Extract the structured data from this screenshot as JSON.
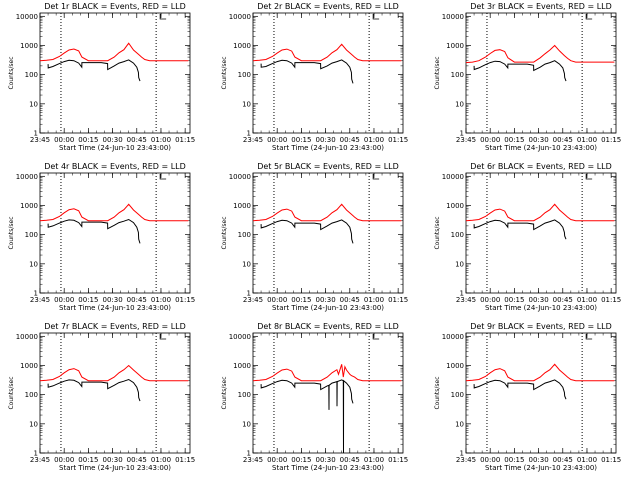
{
  "common": {
    "ylabel": "Counts/sec",
    "xlabel": "Start Time (24-Jun-10 23:43:00)",
    "x_tick_labels": [
      "23:45",
      "00:00",
      "00:15",
      "00:30",
      "00:45",
      "01:00",
      "01:15"
    ],
    "y_tick_labels": [
      "1",
      "10",
      "100",
      "1000",
      "10000"
    ],
    "y_log": true,
    "ylim": [
      1,
      13000
    ],
    "xlim_minutes_from_2345": [
      0,
      93
    ],
    "x_tick_minutes": [
      0,
      15,
      30,
      45,
      60,
      75,
      90
    ],
    "y_ticks": [
      1,
      10,
      100,
      1000,
      10000
    ],
    "vertical_dotted_lines_minutes": [
      13,
      72
    ],
    "colors": {
      "events": "#000000",
      "lld": "#ff0000"
    }
  },
  "chart_data": [
    {
      "type": "line",
      "title": "Det 1r BLACK = Events, RED = LLD",
      "series": [
        {
          "x": [
            0,
            4,
            8,
            12,
            15,
            18,
            21,
            24,
            26,
            30,
            34,
            38,
            42,
            46,
            49,
            52,
            55,
            58,
            61,
            63,
            65,
            68,
            72,
            76,
            80,
            84,
            88,
            92
          ],
          "values": [
            300,
            310,
            330,
            420,
            550,
            700,
            760,
            650,
            400,
            300,
            300,
            300,
            300,
            400,
            560,
            720,
            1200,
            700,
            500,
            400,
            330,
            300,
            300,
            300,
            300,
            300,
            300,
            300
          ]
        },
        {
          "x": [
            5,
            5.1,
            8,
            12,
            15,
            18,
            21,
            24,
            25.9,
            26,
            30,
            34,
            38,
            41.9,
            42,
            46,
            49,
            52,
            55,
            58,
            60,
            61,
            61.2,
            62
          ],
          "values": [
            230,
            170,
            190,
            240,
            280,
            310,
            300,
            250,
            180,
            260,
            260,
            260,
            260,
            240,
            150,
            200,
            250,
            280,
            320,
            250,
            180,
            120,
            80,
            60
          ]
        }
      ]
    },
    {
      "type": "line",
      "title": "Det 2r BLACK = Events, RED = LLD",
      "series": [
        {
          "x": [
            0,
            4,
            8,
            12,
            15,
            18,
            21,
            24,
            26,
            30,
            34,
            38,
            42,
            46,
            49,
            52,
            55,
            58,
            61,
            63,
            65,
            68,
            72,
            76,
            80,
            84,
            88,
            92
          ],
          "values": [
            300,
            310,
            330,
            420,
            550,
            700,
            750,
            640,
            400,
            300,
            300,
            300,
            300,
            400,
            560,
            720,
            1100,
            700,
            500,
            400,
            330,
            300,
            300,
            300,
            300,
            300,
            300,
            300
          ]
        },
        {
          "x": [
            5,
            5.1,
            8,
            12,
            15,
            18,
            21,
            24,
            25.9,
            26,
            30,
            34,
            38,
            41.9,
            42,
            46,
            49,
            52,
            55,
            58,
            60,
            61,
            61.2,
            62
          ],
          "values": [
            240,
            180,
            190,
            240,
            280,
            310,
            300,
            250,
            180,
            260,
            260,
            260,
            260,
            240,
            160,
            200,
            250,
            280,
            320,
            250,
            180,
            120,
            70,
            50
          ]
        }
      ]
    },
    {
      "type": "line",
      "title": "Det 3r BLACK = Events, RED = LLD",
      "series": [
        {
          "x": [
            0,
            4,
            8,
            12,
            15,
            18,
            21,
            24,
            26,
            30,
            34,
            38,
            42,
            46,
            49,
            52,
            55,
            58,
            61,
            63,
            65,
            68,
            72,
            76,
            80,
            84,
            88,
            92
          ],
          "values": [
            260,
            270,
            300,
            400,
            530,
            680,
            720,
            620,
            380,
            270,
            270,
            270,
            270,
            380,
            520,
            700,
            1000,
            650,
            450,
            360,
            300,
            270,
            270,
            270,
            270,
            270,
            270,
            270
          ]
        },
        {
          "x": [
            5,
            5.1,
            8,
            12,
            15,
            18,
            21,
            24,
            25.9,
            26,
            30,
            34,
            38,
            41.9,
            42,
            46,
            49,
            52,
            55,
            58,
            60,
            61,
            61.2,
            62
          ],
          "values": [
            200,
            150,
            170,
            220,
            260,
            290,
            280,
            230,
            170,
            230,
            230,
            230,
            230,
            210,
            140,
            180,
            230,
            260,
            300,
            230,
            170,
            110,
            80,
            60
          ]
        }
      ]
    },
    {
      "type": "line",
      "title": "Det 4r BLACK = Events, RED = LLD",
      "series": [
        {
          "x": [
            0,
            4,
            8,
            12,
            15,
            18,
            21,
            24,
            26,
            30,
            34,
            38,
            42,
            46,
            49,
            52,
            55,
            58,
            61,
            63,
            65,
            68,
            72,
            76,
            80,
            84,
            88,
            92
          ],
          "values": [
            300,
            310,
            330,
            420,
            560,
            720,
            770,
            660,
            400,
            300,
            300,
            300,
            300,
            400,
            560,
            720,
            1100,
            700,
            500,
            400,
            330,
            300,
            300,
            300,
            300,
            300,
            300,
            300
          ]
        },
        {
          "x": [
            5,
            5.1,
            8,
            12,
            15,
            18,
            21,
            24,
            25.9,
            26,
            30,
            34,
            38,
            41.9,
            42,
            46,
            49,
            52,
            55,
            58,
            60,
            61,
            61.2,
            62
          ],
          "values": [
            240,
            180,
            200,
            250,
            290,
            320,
            310,
            260,
            190,
            270,
            270,
            270,
            270,
            250,
            160,
            210,
            260,
            290,
            330,
            260,
            180,
            120,
            70,
            50
          ]
        }
      ]
    },
    {
      "type": "line",
      "title": "Det 5r BLACK = Events, RED = LLD",
      "series": [
        {
          "x": [
            0,
            4,
            8,
            12,
            15,
            18,
            21,
            24,
            26,
            30,
            34,
            38,
            42,
            46,
            49,
            52,
            55,
            58,
            61,
            63,
            65,
            68,
            72,
            76,
            80,
            84,
            88,
            92
          ],
          "values": [
            300,
            310,
            330,
            420,
            550,
            700,
            750,
            640,
            400,
            300,
            300,
            300,
            300,
            400,
            560,
            720,
            1100,
            700,
            500,
            400,
            330,
            300,
            300,
            300,
            300,
            300,
            300,
            300
          ]
        },
        {
          "x": [
            5,
            5.1,
            8,
            12,
            15,
            18,
            21,
            24,
            25.9,
            26,
            30,
            34,
            38,
            41.9,
            42,
            46,
            49,
            52,
            55,
            58,
            60,
            61,
            61.2,
            62
          ],
          "values": [
            230,
            170,
            190,
            240,
            280,
            310,
            300,
            250,
            180,
            250,
            250,
            250,
            250,
            230,
            150,
            200,
            250,
            280,
            320,
            250,
            180,
            110,
            70,
            50
          ]
        }
      ]
    },
    {
      "type": "line",
      "title": "Det 6r BLACK = Events, RED = LLD",
      "series": [
        {
          "x": [
            0,
            4,
            8,
            12,
            15,
            18,
            21,
            24,
            26,
            30,
            34,
            38,
            42,
            46,
            49,
            52,
            55,
            58,
            61,
            63,
            65,
            68,
            72,
            76,
            80,
            84,
            88,
            92
          ],
          "values": [
            300,
            310,
            330,
            420,
            550,
            700,
            750,
            640,
            400,
            300,
            300,
            300,
            300,
            400,
            560,
            720,
            1100,
            700,
            500,
            400,
            330,
            300,
            300,
            300,
            300,
            300,
            300,
            300
          ]
        },
        {
          "x": [
            5,
            5.1,
            8,
            12,
            15,
            18,
            21,
            24,
            25.9,
            26,
            30,
            34,
            38,
            41.9,
            42,
            46,
            49,
            52,
            55,
            58,
            60,
            61,
            61.2,
            62
          ],
          "values": [
            230,
            170,
            190,
            240,
            280,
            310,
            300,
            250,
            180,
            250,
            250,
            250,
            250,
            230,
            150,
            200,
            250,
            280,
            320,
            250,
            180,
            120,
            90,
            70
          ]
        }
      ]
    },
    {
      "type": "line",
      "title": "Det 7r BLACK = Events, RED = LLD",
      "series": [
        {
          "x": [
            0,
            4,
            8,
            12,
            15,
            18,
            21,
            24,
            26,
            30,
            34,
            38,
            42,
            46,
            49,
            52,
            55,
            58,
            61,
            63,
            65,
            68,
            72,
            76,
            80,
            84,
            88,
            92
          ],
          "values": [
            300,
            310,
            330,
            420,
            560,
            720,
            780,
            660,
            400,
            300,
            300,
            300,
            300,
            400,
            560,
            720,
            1000,
            700,
            500,
            400,
            330,
            300,
            300,
            300,
            300,
            300,
            300,
            300
          ]
        },
        {
          "x": [
            5,
            5.1,
            8,
            12,
            15,
            18,
            21,
            24,
            25.9,
            26,
            30,
            34,
            38,
            41.9,
            42,
            46,
            49,
            52,
            55,
            58,
            60,
            61,
            61.2,
            62
          ],
          "values": [
            240,
            180,
            200,
            250,
            290,
            320,
            310,
            260,
            190,
            270,
            270,
            270,
            270,
            250,
            160,
            210,
            260,
            290,
            330,
            260,
            180,
            120,
            80,
            60
          ]
        }
      ]
    },
    {
      "type": "line",
      "title": "Det 8r BLACK = Events, RED = LLD",
      "series": [
        {
          "x": [
            0,
            4,
            8,
            12,
            15,
            18,
            21,
            24,
            26,
            30,
            34,
            38,
            42,
            46,
            49,
            52,
            53,
            55,
            56,
            57,
            58,
            60,
            61,
            63,
            65,
            68,
            72,
            76,
            80,
            84,
            88,
            92
          ],
          "values": [
            300,
            310,
            330,
            420,
            550,
            700,
            750,
            640,
            400,
            300,
            300,
            300,
            300,
            400,
            560,
            720,
            500,
            1100,
            400,
            900,
            700,
            500,
            450,
            400,
            330,
            300,
            300,
            300,
            300,
            300,
            300,
            300
          ]
        },
        {
          "x": [
            5,
            5.1,
            8,
            12,
            15,
            18,
            21,
            24,
            25.9,
            26,
            30,
            34,
            38,
            41.9,
            42,
            46,
            47,
            47.1,
            47.2,
            49,
            51,
            52,
            52.1,
            52.2,
            55,
            56,
            56.1,
            56.2,
            58,
            60,
            61,
            61.2,
            62
          ],
          "values": [
            230,
            170,
            190,
            240,
            280,
            310,
            300,
            250,
            180,
            250,
            250,
            250,
            250,
            230,
            150,
            200,
            210,
            30,
            210,
            250,
            270,
            280,
            40,
            280,
            320,
            300,
            1,
            300,
            250,
            180,
            110,
            70,
            50
          ]
        }
      ]
    },
    {
      "type": "line",
      "title": "Det 9r BLACK = Events, RED = LLD",
      "series": [
        {
          "x": [
            0,
            4,
            8,
            12,
            15,
            18,
            21,
            24,
            26,
            30,
            34,
            38,
            42,
            46,
            49,
            52,
            55,
            58,
            61,
            63,
            65,
            68,
            72,
            76,
            80,
            84,
            88,
            92
          ],
          "values": [
            300,
            310,
            330,
            420,
            560,
            720,
            780,
            660,
            400,
            300,
            300,
            300,
            300,
            400,
            560,
            720,
            1100,
            700,
            500,
            400,
            330,
            300,
            300,
            300,
            300,
            300,
            300,
            300
          ]
        },
        {
          "x": [
            5,
            5.1,
            8,
            12,
            15,
            18,
            21,
            24,
            25.9,
            26,
            30,
            34,
            38,
            41.9,
            42,
            46,
            49,
            52,
            55,
            58,
            60,
            61,
            61.2,
            62
          ],
          "values": [
            230,
            170,
            190,
            240,
            280,
            310,
            300,
            250,
            180,
            250,
            250,
            250,
            250,
            230,
            150,
            200,
            250,
            280,
            320,
            250,
            180,
            120,
            90,
            70
          ]
        }
      ]
    }
  ]
}
